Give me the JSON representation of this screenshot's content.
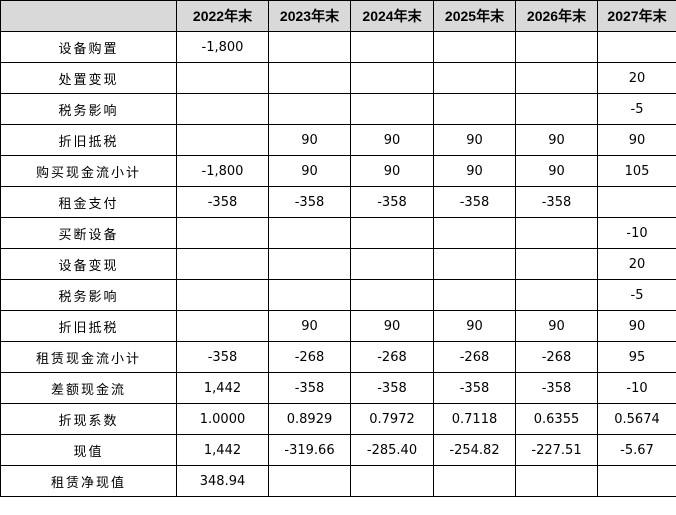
{
  "table": {
    "columns": [
      "2022年末",
      "2023年末",
      "2024年末",
      "2025年末",
      "2026年末",
      "2027年末"
    ],
    "rows": [
      {
        "label": "设备购置",
        "cells": [
          "-1,800",
          null,
          null,
          null,
          null,
          null
        ]
      },
      {
        "label": "处置变现",
        "cells": [
          null,
          null,
          null,
          null,
          null,
          "20"
        ]
      },
      {
        "label": "税务影响",
        "cells": [
          null,
          null,
          null,
          null,
          null,
          "-5"
        ]
      },
      {
        "label": "折旧抵税",
        "cells": [
          null,
          "90",
          "90",
          "90",
          "90",
          "90"
        ]
      },
      {
        "label": "购买现金流小计",
        "cells": [
          "-1,800",
          "90",
          "90",
          "90",
          "90",
          "105"
        ]
      },
      {
        "label": "租金支付",
        "cells": [
          "-358",
          "-358",
          "-358",
          "-358",
          "-358",
          null
        ]
      },
      {
        "label": "买断设备",
        "cells": [
          null,
          null,
          null,
          null,
          null,
          "-10"
        ]
      },
      {
        "label": "设备变现",
        "cells": [
          null,
          null,
          null,
          null,
          null,
          "20"
        ]
      },
      {
        "label": "税务影响",
        "cells": [
          null,
          null,
          null,
          null,
          null,
          "-5"
        ]
      },
      {
        "label": "折旧抵税",
        "cells": [
          null,
          "90",
          "90",
          "90",
          "90",
          "90"
        ]
      },
      {
        "label": "租赁现金流小计",
        "cells": [
          "-358",
          "-268",
          "-268",
          "-268",
          "-268",
          "95"
        ]
      },
      {
        "label": "差额现金流",
        "cells": [
          "1,442",
          "-358",
          "-358",
          "-358",
          "-358",
          "-10"
        ]
      },
      {
        "label": "折现系数",
        "cells": [
          "1.0000",
          "0.8929",
          "0.7972",
          "0.7118",
          "0.6355",
          "0.5674"
        ]
      },
      {
        "label": "现值",
        "cells": [
          "1,442",
          "-319.66",
          "-285.40",
          "-254.82",
          "-227.51",
          "-5.67"
        ]
      },
      {
        "label": "租赁净现值",
        "cells": [
          "348.94",
          null,
          null,
          null,
          null,
          null
        ]
      }
    ]
  }
}
